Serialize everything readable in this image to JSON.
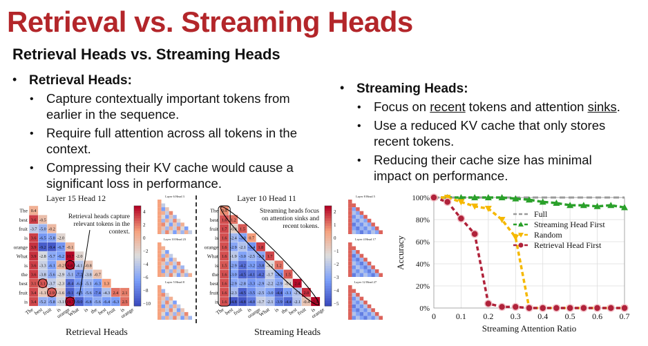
{
  "title": "Retrieval vs. Streaming Heads",
  "subtitle": "Retrieval Heads vs. Streaming Heads",
  "retrieval": {
    "heading": "Retrieval Heads:",
    "points": [
      "Capture contextually important tokens from earlier in the sequence.",
      "Require full attention across all tokens in the context.",
      "Compressing their KV cache would cause a significant loss in performance."
    ]
  },
  "streaming": {
    "heading": "Streaming Heads:",
    "p1_pre": "Focus on ",
    "p1_recent": "recent",
    "p1_mid": " tokens and attention ",
    "p1_sinks": "sinks",
    "p1_post": ".",
    "p2": "Use a reduced KV cache that only stores recent tokens.",
    "p3": "Reducing their cache size has minimal impact on performance."
  },
  "fig_retrieval": {
    "panel_title": "Layer 15 Head 12",
    "annotation_line1": "Retrieval heads capture",
    "annotation_line2": "relevant tokens in the",
    "annotation_line3": "context.",
    "caption": "Retrieval Heads",
    "tokens": [
      "The",
      "best",
      "fruit",
      "is",
      "orange",
      "What",
      "is",
      "the",
      "best",
      "fruit"
    ],
    "xtokens": [
      "The",
      "best",
      "fruit",
      "is",
      "orange",
      "What",
      "is",
      "the",
      "best",
      "fruit",
      "is",
      "orange"
    ],
    "rows": [
      [
        "0.4"
      ],
      [
        "3.6",
        "-0.5"
      ],
      [
        "-3.7",
        "-5.0",
        "-0.2"
      ],
      [
        "3.6",
        "-6.5",
        "-5.8",
        "-2.0"
      ],
      [
        "3.9",
        "-9.2",
        "-9.4",
        "-6.7",
        "-0.1"
      ],
      [
        "3.9",
        "-2.8",
        "-5.7",
        "-6.2",
        "10.7",
        "-2.0"
      ],
      [
        "3.6",
        "-3.3",
        "-6.1",
        "-0.2",
        "6.8",
        "-4.1",
        "-0.8"
      ],
      [
        "3.6",
        "-3.8",
        "-5.6",
        "-2.9",
        "-5.1",
        "-7.2",
        "-3.8",
        "-0.7"
      ],
      [
        "3.1",
        "3.1",
        "-3.7",
        "-2.3",
        "-8.4",
        "-6.5",
        "-5.1",
        "-6.3",
        "1.3"
      ],
      [
        "3.4",
        "-1.1",
        "2.9",
        "-1.6",
        "-9.1",
        "-6.5",
        "-5.6",
        "-7.4",
        "-4.3",
        "2.4",
        "2.1"
      ],
      [
        "3.4",
        "-5.2",
        "-5.8",
        "-3.1",
        "19.7",
        "-9.0",
        "-6.8",
        "-5.6",
        "-6.4",
        "-6.3",
        "2.5"
      ]
    ],
    "colorbar_ticks": [
      "4",
      "2",
      "0",
      "−2",
      "−4",
      "−6",
      "−8",
      "−10"
    ],
    "thumb_titles": [
      "Layer 6 Head 3",
      "Layer 10 Head 23",
      "Layer 5 Head 8"
    ]
  },
  "fig_streaming": {
    "panel_title": "Layer 10 Head 11",
    "annotation_line1": "Streaming heads focus",
    "annotation_line2": "on attention sinks and",
    "annotation_line3": "recent tokens.",
    "caption": "Streaming Heads",
    "tokens": [
      "The",
      "best",
      "fruit",
      "is",
      "orange",
      "What",
      "is",
      "the",
      "best",
      "fruit"
    ],
    "xtokens": [
      "The",
      "best",
      "fruit",
      "is",
      "orange",
      "What",
      "is",
      "the",
      "best",
      "fruit",
      "is",
      "orange"
    ],
    "rows": [
      [
        "0.9"
      ],
      [
        "1.6",
        "1.2"
      ],
      [
        "1.7",
        "-0.8",
        "1.5"
      ],
      [
        "1.6",
        "-2.4",
        "-3.0",
        "0.7"
      ],
      [
        "1.6",
        "-2.9",
        "-2.1",
        "-3.4",
        "1.8"
      ],
      [
        "1.6",
        "-1.9",
        "-3.0",
        "-2.5",
        "-2.9",
        "1.7"
      ],
      [
        "1.5",
        "-2.9",
        "-4.2",
        "-3.2",
        "-3.8",
        "-1.2",
        "1.2"
      ],
      [
        "1.6",
        "-3.0",
        "-4.5",
        "-4.1",
        "-4.2",
        "-1.7",
        "-3.3",
        "1.5"
      ],
      [
        "1.6",
        "-2.9",
        "-2.8",
        "-3.3",
        "-2.9",
        "-2.2",
        "-2.9",
        "-1.1",
        "2.4"
      ],
      [
        "1.6",
        "-2.3",
        "-4.5",
        "-3.5",
        "-2.5",
        "-3.0",
        "-4.4",
        "-3.1",
        "-2.1",
        "2.0"
      ],
      [
        "1.6",
        "-4.8",
        "-4.8",
        "-4.0",
        "-1.7",
        "-2.1",
        "-3.9",
        "-4.4",
        "-2.1",
        "-0.4",
        "2.9"
      ]
    ],
    "colorbar_ticks": [
      "2",
      "1",
      "0",
      "−1",
      "−2",
      "−3",
      "−4",
      "−5"
    ],
    "thumb_titles": [
      "Layer 8 Head 5",
      "Layer 4 Head 17",
      "Layer 12 Head 27"
    ]
  },
  "chart_data": {
    "type": "line",
    "title": "",
    "xlabel": "Streaming Attention Ratio",
    "ylabel": "Accuracy",
    "xlim": [
      0,
      0.7
    ],
    "ylim": [
      0,
      100
    ],
    "xticks": [
      "0",
      "0.1",
      "0.2",
      "0.3",
      "0.4",
      "0.5",
      "0.6",
      "0.7"
    ],
    "yticks": [
      "0%",
      "20%",
      "40%",
      "60%",
      "80%",
      "100%"
    ],
    "legend_position": "center-right",
    "series": [
      {
        "name": "Full",
        "color": "#9a9a9a",
        "style": "dashed",
        "marker": "none",
        "x": [
          0,
          0.7
        ],
        "y": [
          100,
          100
        ]
      },
      {
        "name": "Streaming Head First",
        "color": "#2aa02a",
        "style": "dashed",
        "marker": "triangle-up",
        "x": [
          0,
          0.05,
          0.1,
          0.15,
          0.2,
          0.25,
          0.3,
          0.35,
          0.4,
          0.45,
          0.5,
          0.55,
          0.6,
          0.65,
          0.7
        ],
        "y": [
          100,
          100,
          100,
          100,
          100,
          100,
          99,
          98,
          96,
          95,
          93,
          93,
          92,
          93,
          91
        ]
      },
      {
        "name": "Random",
        "color": "#f5b800",
        "style": "dashed",
        "marker": "triangle-down",
        "x": [
          0,
          0.05,
          0.1,
          0.15,
          0.2,
          0.25,
          0.3,
          0.35,
          0.4,
          0.45,
          0.5,
          0.55,
          0.6,
          0.65,
          0.7
        ],
        "y": [
          100,
          100,
          96,
          92,
          90,
          80,
          64,
          0,
          0,
          0,
          0,
          0,
          0,
          0,
          0
        ]
      },
      {
        "name": "Retrieval Head First",
        "color": "#b0223a",
        "style": "dashed",
        "marker": "circle",
        "x": [
          0,
          0.05,
          0.1,
          0.15,
          0.2,
          0.25,
          0.3,
          0.35,
          0.4,
          0.45,
          0.5,
          0.55,
          0.6,
          0.65,
          0.7
        ],
        "y": [
          100,
          96,
          81,
          67,
          4,
          1,
          1,
          0,
          0,
          0,
          0,
          0,
          0,
          0,
          0
        ]
      }
    ]
  }
}
